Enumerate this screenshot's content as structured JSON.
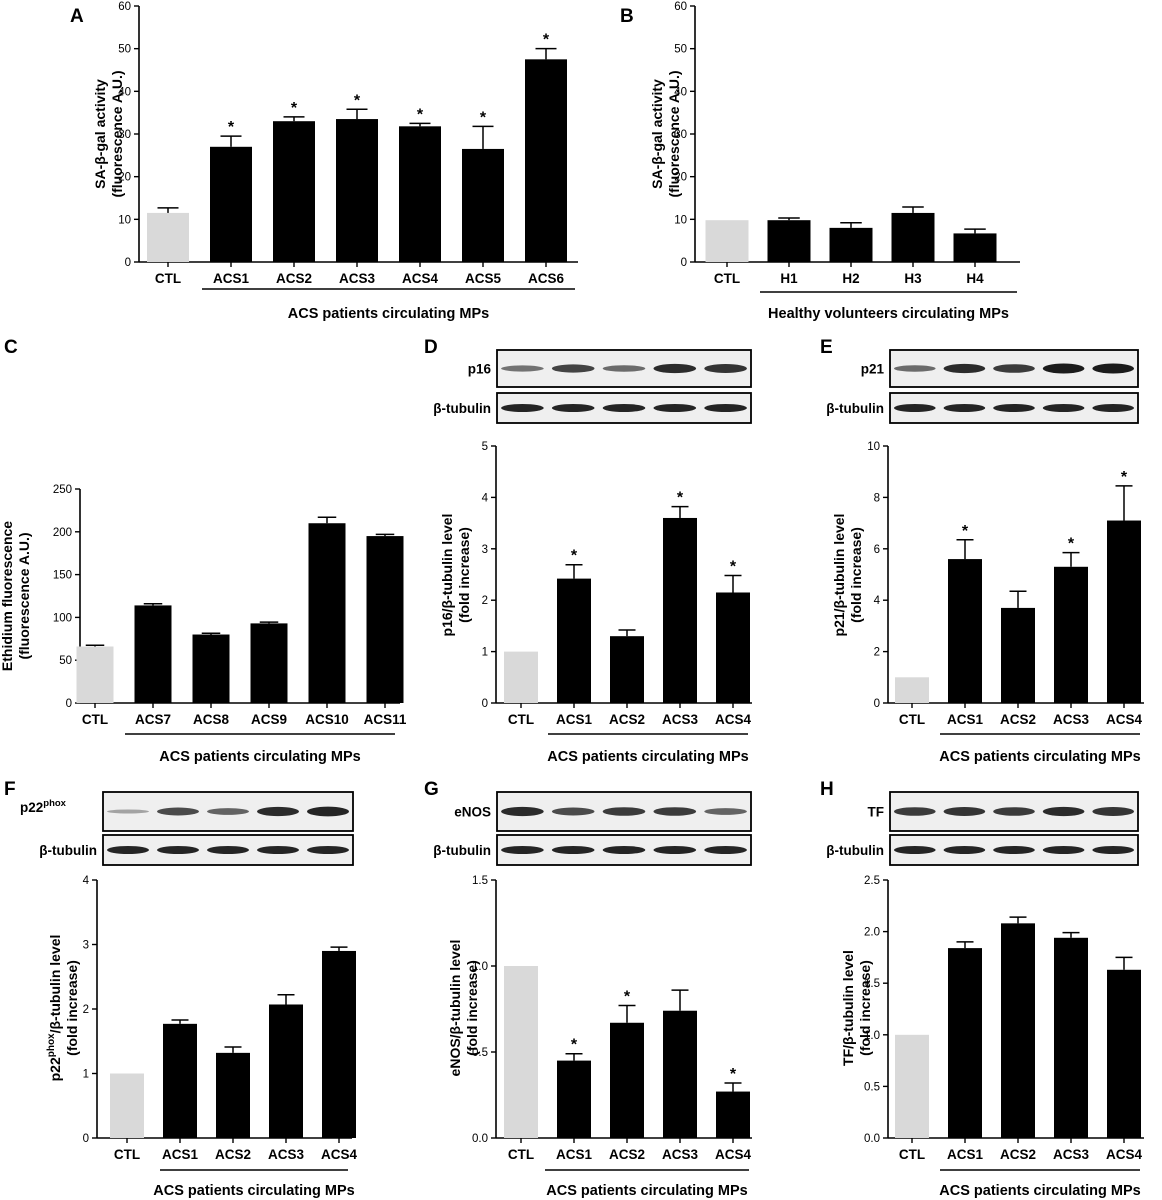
{
  "colors": {
    "control_bar": "#d9d9d9",
    "treated_bar": "#000000",
    "blot_bg": "#efefef",
    "blot_band": "#1b1b1b"
  },
  "chart_data": [
    {
      "id": "A",
      "panel_label": "A",
      "type": "bar",
      "ylabel": [
        "SA-β-gal activity",
        "(fluorescence A.U.)"
      ],
      "ylim": [
        0,
        60
      ],
      "yticks": [
        "0",
        "10",
        "20",
        "30",
        "40",
        "50",
        "60"
      ],
      "categories": [
        "CTL",
        "ACS1",
        "ACS2",
        "ACS3",
        "ACS4",
        "ACS5",
        "ACS6"
      ],
      "values": [
        11.5,
        27,
        33,
        33.5,
        31.8,
        26.5,
        47.5
      ],
      "errors": [
        1.2,
        2.5,
        1,
        2.3,
        0.7,
        5.3,
        2.5
      ],
      "significance": [
        "",
        "*",
        "*",
        "*",
        "*",
        "*",
        "*"
      ],
      "group_label": "ACS patients circulating MPs"
    },
    {
      "id": "B",
      "panel_label": "B",
      "type": "bar",
      "ylabel": [
        "SA-β-gal activity",
        "(fluorescence A.U.)"
      ],
      "ylim": [
        0,
        60
      ],
      "yticks": [
        "0",
        "10",
        "20",
        "30",
        "40",
        "50",
        "60"
      ],
      "categories": [
        "CTL",
        "H1",
        "H2",
        "H3",
        "H4"
      ],
      "values": [
        9.8,
        9.8,
        8,
        11.5,
        6.7
      ],
      "errors": [
        0,
        0.5,
        1.2,
        1.4,
        1.0
      ],
      "significance": [
        "",
        "",
        "",
        "",
        ""
      ],
      "group_label": "Healthy volunteers circulating MPs"
    },
    {
      "id": "C",
      "panel_label": "C",
      "type": "bar",
      "ylabel": [
        "Ethidium fluorescence",
        "(fluorescence A.U.)"
      ],
      "ylim": [
        0,
        250
      ],
      "yticks": [
        "0",
        "50",
        "100",
        "150",
        "200",
        "250"
      ],
      "categories": [
        "CTL",
        "ACS7",
        "ACS8",
        "ACS9",
        "ACS10",
        "ACS11"
      ],
      "values": [
        66,
        114,
        80,
        93,
        210,
        195
      ],
      "errors": [
        1.5,
        2,
        1.5,
        1.5,
        7,
        2
      ],
      "significance": [
        "",
        "",
        "",
        "",
        "",
        ""
      ],
      "group_label": "ACS patients circulating MPs"
    },
    {
      "id": "D",
      "panel_label": "D",
      "type": "bar",
      "ylabel": [
        "p16/β-tubulin level",
        "(fold increase)"
      ],
      "ylim": [
        0,
        5
      ],
      "yticks": [
        "0",
        "1",
        "2",
        "3",
        "4",
        "5"
      ],
      "categories": [
        "CTL",
        "ACS1",
        "ACS2",
        "ACS3",
        "ACS4"
      ],
      "values": [
        1,
        2.42,
        1.3,
        3.6,
        2.15
      ],
      "errors": [
        0,
        0.27,
        0.12,
        0.22,
        0.33
      ],
      "significance": [
        "",
        "*",
        "",
        "*",
        "*"
      ],
      "group_label": "ACS patients circulating MPs",
      "blot": {
        "top_label": "p16",
        "bottom_label": "β-tubulin"
      }
    },
    {
      "id": "E",
      "panel_label": "E",
      "type": "bar",
      "ylabel": [
        "p21/β-tubulin level",
        "(fold increase)"
      ],
      "ylim": [
        0,
        10
      ],
      "yticks": [
        "0",
        "2",
        "4",
        "6",
        "8",
        "10"
      ],
      "categories": [
        "CTL",
        "ACS1",
        "ACS2",
        "ACS3",
        "ACS4"
      ],
      "values": [
        1,
        5.6,
        3.7,
        5.3,
        7.1
      ],
      "errors": [
        0,
        0.75,
        0.65,
        0.55,
        1.35
      ],
      "significance": [
        "",
        "*",
        "",
        "*",
        "*"
      ],
      "group_label": "ACS patients circulating MPs",
      "blot": {
        "top_label": "p21",
        "bottom_label": "β-tubulin"
      }
    },
    {
      "id": "F",
      "panel_label": "F",
      "type": "bar",
      "ylabel_rich": {
        "before": "p22",
        "sup": "phox",
        "after": "/β-tubulin level"
      },
      "ylabel": [
        "",
        "(fold increase)"
      ],
      "ylim": [
        0,
        4
      ],
      "yticks": [
        "0",
        "1",
        "2",
        "3",
        "4"
      ],
      "categories": [
        "CTL",
        "ACS1",
        "ACS2",
        "ACS3",
        "ACS4"
      ],
      "values": [
        1,
        1.77,
        1.32,
        2.07,
        2.9
      ],
      "errors": [
        0,
        0.06,
        0.09,
        0.15,
        0.06
      ],
      "significance": [
        "",
        "",
        "",
        "",
        ""
      ],
      "group_label": "ACS patients circulating MPs",
      "blot": {
        "top_label_rich": {
          "base": "p22",
          "sup": "phox"
        },
        "bottom_label": "β-tubulin"
      }
    },
    {
      "id": "G",
      "panel_label": "G",
      "type": "bar",
      "ylabel": [
        "eNOS/β-tubulin level",
        "(fold increase)"
      ],
      "ylim": [
        0,
        1.5
      ],
      "yticks": [
        "0.0",
        "0.5",
        "1.0",
        "1.5"
      ],
      "categories": [
        "CTL",
        "ACS1",
        "ACS2",
        "ACS3",
        "ACS4"
      ],
      "values": [
        1,
        0.45,
        0.67,
        0.74,
        0.27
      ],
      "errors": [
        0,
        0.04,
        0.1,
        0.12,
        0.05
      ],
      "significance": [
        "",
        "*",
        "*",
        "",
        "*"
      ],
      "group_label": "ACS patients circulating MPs",
      "blot": {
        "top_label": "eNOS",
        "bottom_label": "β-tubulin"
      }
    },
    {
      "id": "H",
      "panel_label": "H",
      "type": "bar",
      "ylabel": [
        "TF/β-tubulin level",
        "(fold increase)"
      ],
      "ylim": [
        0,
        2.5
      ],
      "yticks": [
        "0.0",
        "0.5",
        "1.0",
        "1.5",
        "2.0",
        "2.5"
      ],
      "categories": [
        "CTL",
        "ACS1",
        "ACS2",
        "ACS3",
        "ACS4"
      ],
      "values": [
        1,
        1.84,
        2.08,
        1.94,
        1.63
      ],
      "errors": [
        0,
        0.06,
        0.06,
        0.05,
        0.12
      ],
      "significance": [
        "",
        "",
        "",
        "",
        ""
      ],
      "group_label": "ACS patients circulating MPs",
      "blot": {
        "top_label": "TF",
        "bottom_label": "β-tubulin"
      }
    }
  ]
}
